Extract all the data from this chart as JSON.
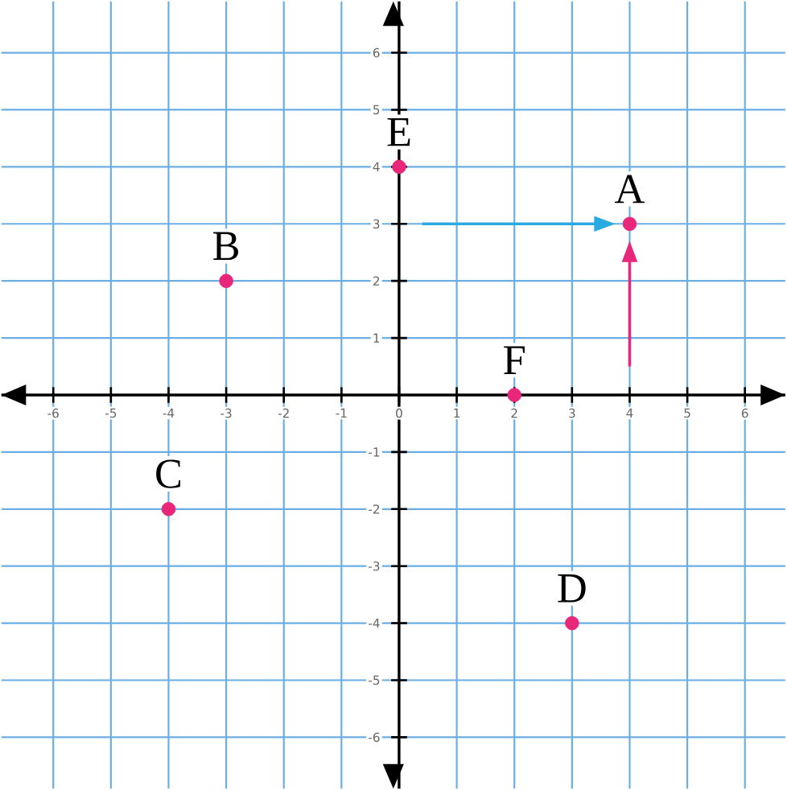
{
  "chart_data": {
    "type": "scatter",
    "series": [
      {
        "color": "#e8267a",
        "marker": "circle",
        "x": [
          4,
          -3,
          -4,
          3,
          0,
          2
        ],
        "values": [
          3,
          2,
          -2,
          -4,
          4,
          0
        ]
      }
    ],
    "annotations": [
      {
        "text": "A",
        "x": 4,
        "y": 3
      },
      {
        "text": "B",
        "x": -3,
        "y": 2
      },
      {
        "text": "C",
        "x": -4,
        "y": -2
      },
      {
        "text": "D",
        "x": 3,
        "y": -4
      },
      {
        "text": "E",
        "x": 0,
        "y": 4
      },
      {
        "text": "F",
        "x": 2,
        "y": 0
      }
    ],
    "xlim": [
      -6.9,
      6.7
    ],
    "ylim": [
      -6.9,
      6.9
    ],
    "xticks": [
      -6,
      -5,
      -4,
      -3,
      -2,
      -1,
      0,
      1,
      2,
      3,
      4,
      5,
      6
    ],
    "yticks": [
      -6,
      -5,
      -4,
      -3,
      -2,
      -1,
      1,
      2,
      3,
      4,
      5,
      6
    ],
    "grid": true
  }
}
